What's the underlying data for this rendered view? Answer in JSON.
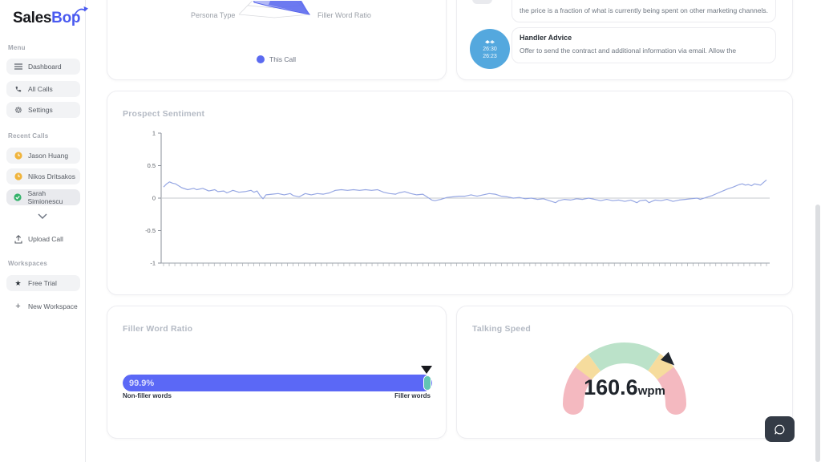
{
  "brand": {
    "name_a": "Sales",
    "name_b": "Bop"
  },
  "sidebar": {
    "menu_label": "Menu",
    "menu_items": [
      {
        "label": "Dashboard",
        "icon": "menu-icon"
      },
      {
        "label": "All Calls",
        "icon": "phone-icon"
      },
      {
        "label": "Settings",
        "icon": "gear-icon"
      }
    ],
    "recent_label": "Recent Calls",
    "recent_calls": [
      {
        "name": "Jason Huang",
        "status": "pending",
        "badge_color": "#f0b43c"
      },
      {
        "name": "Nikos Dritsakos",
        "status": "pending",
        "badge_color": "#f0b43c"
      },
      {
        "name": "Sarah Simionescu",
        "status": "complete",
        "badge_color": "#35b36b"
      }
    ],
    "upload_label": "Upload Call",
    "workspaces_label": "Workspaces",
    "workspaces": [
      {
        "label": "Free Trial",
        "icon": "star-icon"
      }
    ],
    "new_workspace_label": "New Workspace"
  },
  "cards": {
    "radar": {
      "axis_label_left": "Persona Type",
      "axis_label_right": "Filler Word Ratio",
      "legend_label": "This Call"
    },
    "coaching": {
      "message_text": "the price is a fraction of what is currently being spent on other marketing channels.",
      "advice_title": "Handler Advice",
      "advice_text": "Offer to send the contract and additional information via email. Allow the",
      "timestamp_start": "26:30",
      "timestamp_end": "26:23"
    },
    "sentiment": {
      "title": "Prospect Sentiment"
    },
    "filler": {
      "title": "Filler Word Ratio",
      "left_label": "Non-filler words",
      "right_label": "Filler words"
    },
    "speed": {
      "title": "Talking Speed",
      "value": "160.6",
      "unit": "wpm"
    }
  },
  "chart_data": [
    {
      "type": "radar",
      "visible_axis_labels": [
        "Persona Type",
        "Filler Word Ratio"
      ],
      "legend": [
        "This Call"
      ],
      "series_color": "#6573ee",
      "note": "chart clipped at top of viewport"
    },
    {
      "type": "line",
      "title": "Prospect Sentiment",
      "xlabel": "",
      "ylabel": "",
      "ylim": [
        -1,
        1
      ],
      "yticks": [
        1,
        0.5,
        0,
        -0.5,
        -1
      ],
      "x_axis_ticks": 108,
      "grid": false,
      "line_color": "#96a7e3",
      "points": [
        [
          0.0,
          0.17
        ],
        [
          0.005,
          0.22
        ],
        [
          0.01,
          0.25
        ],
        [
          0.015,
          0.23
        ],
        [
          0.02,
          0.22
        ],
        [
          0.03,
          0.16
        ],
        [
          0.04,
          0.13
        ],
        [
          0.05,
          0.15
        ],
        [
          0.055,
          0.13
        ],
        [
          0.065,
          0.15
        ],
        [
          0.075,
          0.11
        ],
        [
          0.085,
          0.13
        ],
        [
          0.09,
          0.1
        ],
        [
          0.1,
          0.11
        ],
        [
          0.105,
          0.08
        ],
        [
          0.115,
          0.12
        ],
        [
          0.125,
          0.09
        ],
        [
          0.135,
          0.1
        ],
        [
          0.145,
          0.12
        ],
        [
          0.15,
          0.09
        ],
        [
          0.155,
          0.11
        ],
        [
          0.16,
          0.04
        ],
        [
          0.165,
          -0.01
        ],
        [
          0.17,
          0.05
        ],
        [
          0.18,
          0.06
        ],
        [
          0.19,
          0.07
        ],
        [
          0.2,
          0.05
        ],
        [
          0.21,
          0.07
        ],
        [
          0.215,
          0.04
        ],
        [
          0.225,
          0.02
        ],
        [
          0.235,
          0.07
        ],
        [
          0.245,
          0.05
        ],
        [
          0.255,
          0.07
        ],
        [
          0.265,
          0.06
        ],
        [
          0.275,
          0.08
        ],
        [
          0.285,
          0.12
        ],
        [
          0.295,
          0.13
        ],
        [
          0.305,
          0.12
        ],
        [
          0.315,
          0.13
        ],
        [
          0.325,
          0.12
        ],
        [
          0.335,
          0.13
        ],
        [
          0.345,
          0.12
        ],
        [
          0.355,
          0.13
        ],
        [
          0.365,
          0.09
        ],
        [
          0.375,
          0.07
        ],
        [
          0.385,
          0.06
        ],
        [
          0.39,
          0.08
        ],
        [
          0.4,
          0.1
        ],
        [
          0.41,
          0.07
        ],
        [
          0.42,
          0.05
        ],
        [
          0.43,
          0.06
        ],
        [
          0.44,
          0.0
        ],
        [
          0.445,
          -0.03
        ],
        [
          0.45,
          -0.04
        ],
        [
          0.46,
          -0.02
        ],
        [
          0.47,
          0.01
        ],
        [
          0.48,
          0.02
        ],
        [
          0.49,
          0.03
        ],
        [
          0.5,
          0.03
        ],
        [
          0.51,
          0.05
        ],
        [
          0.52,
          0.03
        ],
        [
          0.53,
          0.05
        ],
        [
          0.54,
          0.07
        ],
        [
          0.55,
          0.06
        ],
        [
          0.56,
          0.03
        ],
        [
          0.57,
          0.02
        ],
        [
          0.58,
          0.0
        ],
        [
          0.59,
          0.01
        ],
        [
          0.6,
          -0.01
        ],
        [
          0.61,
          0.0
        ],
        [
          0.62,
          -0.02
        ],
        [
          0.63,
          -0.01
        ],
        [
          0.64,
          -0.04
        ],
        [
          0.65,
          -0.07
        ],
        [
          0.655,
          -0.04
        ],
        [
          0.665,
          -0.02
        ],
        [
          0.675,
          -0.03
        ],
        [
          0.685,
          -0.01
        ],
        [
          0.695,
          -0.02
        ],
        [
          0.705,
          0.0
        ],
        [
          0.715,
          -0.02
        ],
        [
          0.725,
          -0.04
        ],
        [
          0.735,
          -0.02
        ],
        [
          0.745,
          -0.04
        ],
        [
          0.755,
          -0.03
        ],
        [
          0.765,
          -0.05
        ],
        [
          0.775,
          -0.03
        ],
        [
          0.785,
          -0.07
        ],
        [
          0.79,
          -0.04
        ],
        [
          0.8,
          -0.03
        ],
        [
          0.805,
          -0.07
        ],
        [
          0.815,
          -0.03
        ],
        [
          0.825,
          -0.04
        ],
        [
          0.835,
          -0.02
        ],
        [
          0.845,
          -0.05
        ],
        [
          0.855,
          -0.03
        ],
        [
          0.865,
          -0.02
        ],
        [
          0.875,
          -0.01
        ],
        [
          0.885,
          0.0
        ],
        [
          0.89,
          -0.02
        ],
        [
          0.9,
          0.01
        ],
        [
          0.91,
          0.04
        ],
        [
          0.92,
          0.08
        ],
        [
          0.93,
          0.12
        ],
        [
          0.935,
          0.14
        ],
        [
          0.945,
          0.17
        ],
        [
          0.95,
          0.19
        ],
        [
          0.955,
          0.21
        ],
        [
          0.96,
          0.22
        ],
        [
          0.965,
          0.2
        ],
        [
          0.97,
          0.21
        ],
        [
          0.975,
          0.19
        ],
        [
          0.98,
          0.22
        ],
        [
          0.985,
          0.21
        ],
        [
          0.99,
          0.2
        ],
        [
          1.0,
          0.28
        ]
      ]
    },
    {
      "type": "bar",
      "title": "Filler Word Ratio",
      "categories": [
        "Non-filler words",
        "Filler words"
      ],
      "values": [
        99.9,
        0.1
      ],
      "unit": "%",
      "label": "99.9%",
      "colors": [
        "#5b68f6",
        "#62c5b4"
      ]
    },
    {
      "type": "gauge",
      "title": "Talking Speed",
      "value": 160.6,
      "unit": "wpm",
      "needle_angle_deg": 46,
      "segments": [
        {
          "from": 180,
          "to": 143,
          "color": "#f4b9c0"
        },
        {
          "from": 143,
          "to": 126,
          "color": "#f6dc9d"
        },
        {
          "from": 126,
          "to": 55,
          "color": "#bbe2c9"
        },
        {
          "from": 55,
          "to": 37,
          "color": "#f6dc9d"
        },
        {
          "from": 37,
          "to": 0,
          "color": "#f4b9c0"
        }
      ]
    }
  ]
}
